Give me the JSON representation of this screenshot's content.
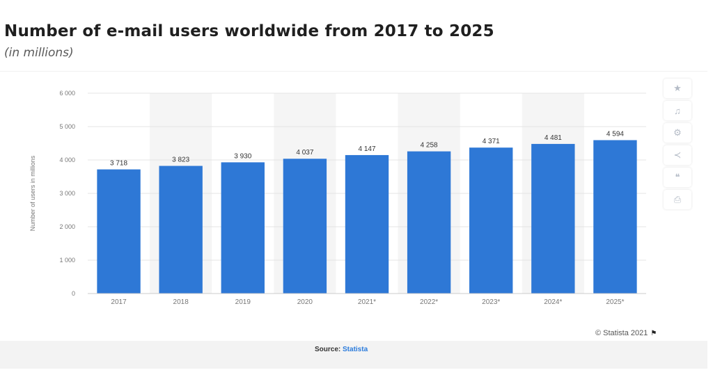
{
  "header": {
    "title": "Number of e-mail users worldwide from 2017 to 2025",
    "subtitle": "(in millions)"
  },
  "toolbar": {
    "icons": [
      "star-icon",
      "bell-icon",
      "settings-icon",
      "share-icon",
      "quote-icon",
      "print-icon"
    ],
    "glyphs": [
      "★",
      "♫",
      "⚙",
      "≺",
      "❝",
      "⎙"
    ]
  },
  "footer": {
    "copyright": "© Statista 2021",
    "source_label": "Source:",
    "source_link": "Statista"
  },
  "colors": {
    "bar": "#2e78d6",
    "band": "#f5f5f5",
    "grid": "#e4e4e4",
    "axis_text": "#777777"
  },
  "chart_data": {
    "type": "bar",
    "title": "Number of e-mail users worldwide from 2017 to 2025",
    "subtitle": "(in millions)",
    "xlabel": "",
    "ylabel": "Number of users in millions",
    "categories": [
      "2017",
      "2018",
      "2019",
      "2020",
      "2021*",
      "2022*",
      "2023*",
      "2024*",
      "2025*"
    ],
    "values": [
      3718,
      3823,
      3930,
      4037,
      4147,
      4258,
      4371,
      4481,
      4594
    ],
    "value_labels": [
      "3 718",
      "3 823",
      "3 930",
      "4 037",
      "4 147",
      "4 258",
      "4 371",
      "4 481",
      "4 594"
    ],
    "ylim": [
      0,
      6000
    ],
    "yticks": [
      0,
      1000,
      2000,
      3000,
      4000,
      5000,
      6000
    ],
    "ytick_labels": [
      "0",
      "1 000",
      "2 000",
      "3 000",
      "4 000",
      "5 000",
      "6 000"
    ],
    "grid": true,
    "legend": "none"
  }
}
